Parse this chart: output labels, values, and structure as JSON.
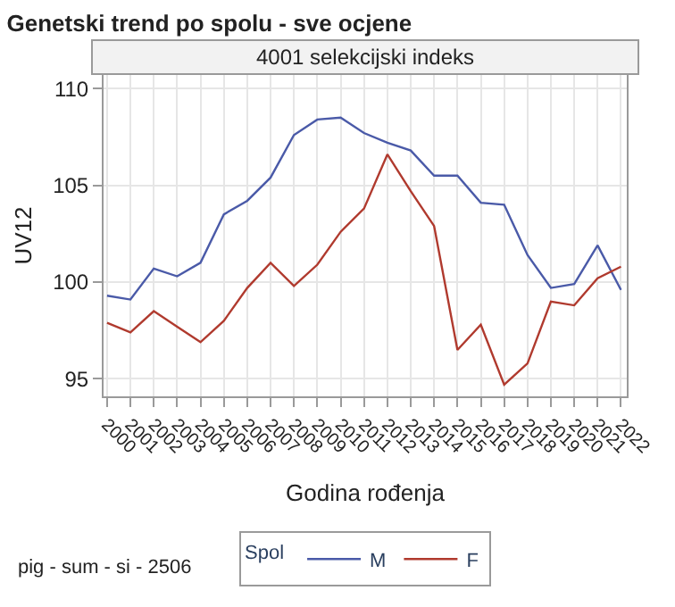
{
  "chart_data": {
    "type": "line",
    "title": "Genetski trend po spolu - sve ocjene",
    "subtitle": "4001 selekcijski indeks",
    "xlabel": "Godina rođenja",
    "ylabel": "UV12",
    "legend_title": "Spol",
    "x": [
      2000,
      2001,
      2002,
      2003,
      2004,
      2005,
      2006,
      2007,
      2008,
      2009,
      2010,
      2011,
      2012,
      2013,
      2014,
      2015,
      2016,
      2017,
      2018,
      2019,
      2020,
      2021,
      2022
    ],
    "series": [
      {
        "name": "M",
        "color": "#4a5aa8",
        "values": [
          99.3,
          99.1,
          100.7,
          100.3,
          101.0,
          103.5,
          104.2,
          105.4,
          107.6,
          108.4,
          108.5,
          107.7,
          107.2,
          106.8,
          105.5,
          105.5,
          104.1,
          104.0,
          101.4,
          99.7,
          99.9,
          101.9,
          99.6
        ]
      },
      {
        "name": "F",
        "color": "#b03a2e",
        "values": [
          97.9,
          97.4,
          98.5,
          97.7,
          96.9,
          98.0,
          99.7,
          101.0,
          99.8,
          100.9,
          102.6,
          103.8,
          106.6,
          104.7,
          102.9,
          96.5,
          97.8,
          94.7,
          95.8,
          99.0,
          98.8,
          100.2,
          100.8
        ]
      }
    ],
    "xlim": [
      1999.85,
      2022.25
    ],
    "xticks": [
      2000,
      2001,
      2002,
      2003,
      2004,
      2005,
      2006,
      2007,
      2008,
      2009,
      2010,
      2011,
      2012,
      2013,
      2014,
      2015,
      2016,
      2017,
      2018,
      2019,
      2020,
      2021,
      2022
    ],
    "ylim": [
      94.1,
      110.7
    ],
    "yticks": [
      95,
      100,
      105,
      110
    ],
    "grid": true,
    "legend": "bottom",
    "marker": "none",
    "line_style": "solid",
    "annotations": [
      "pig - sum - si - 2506"
    ]
  }
}
